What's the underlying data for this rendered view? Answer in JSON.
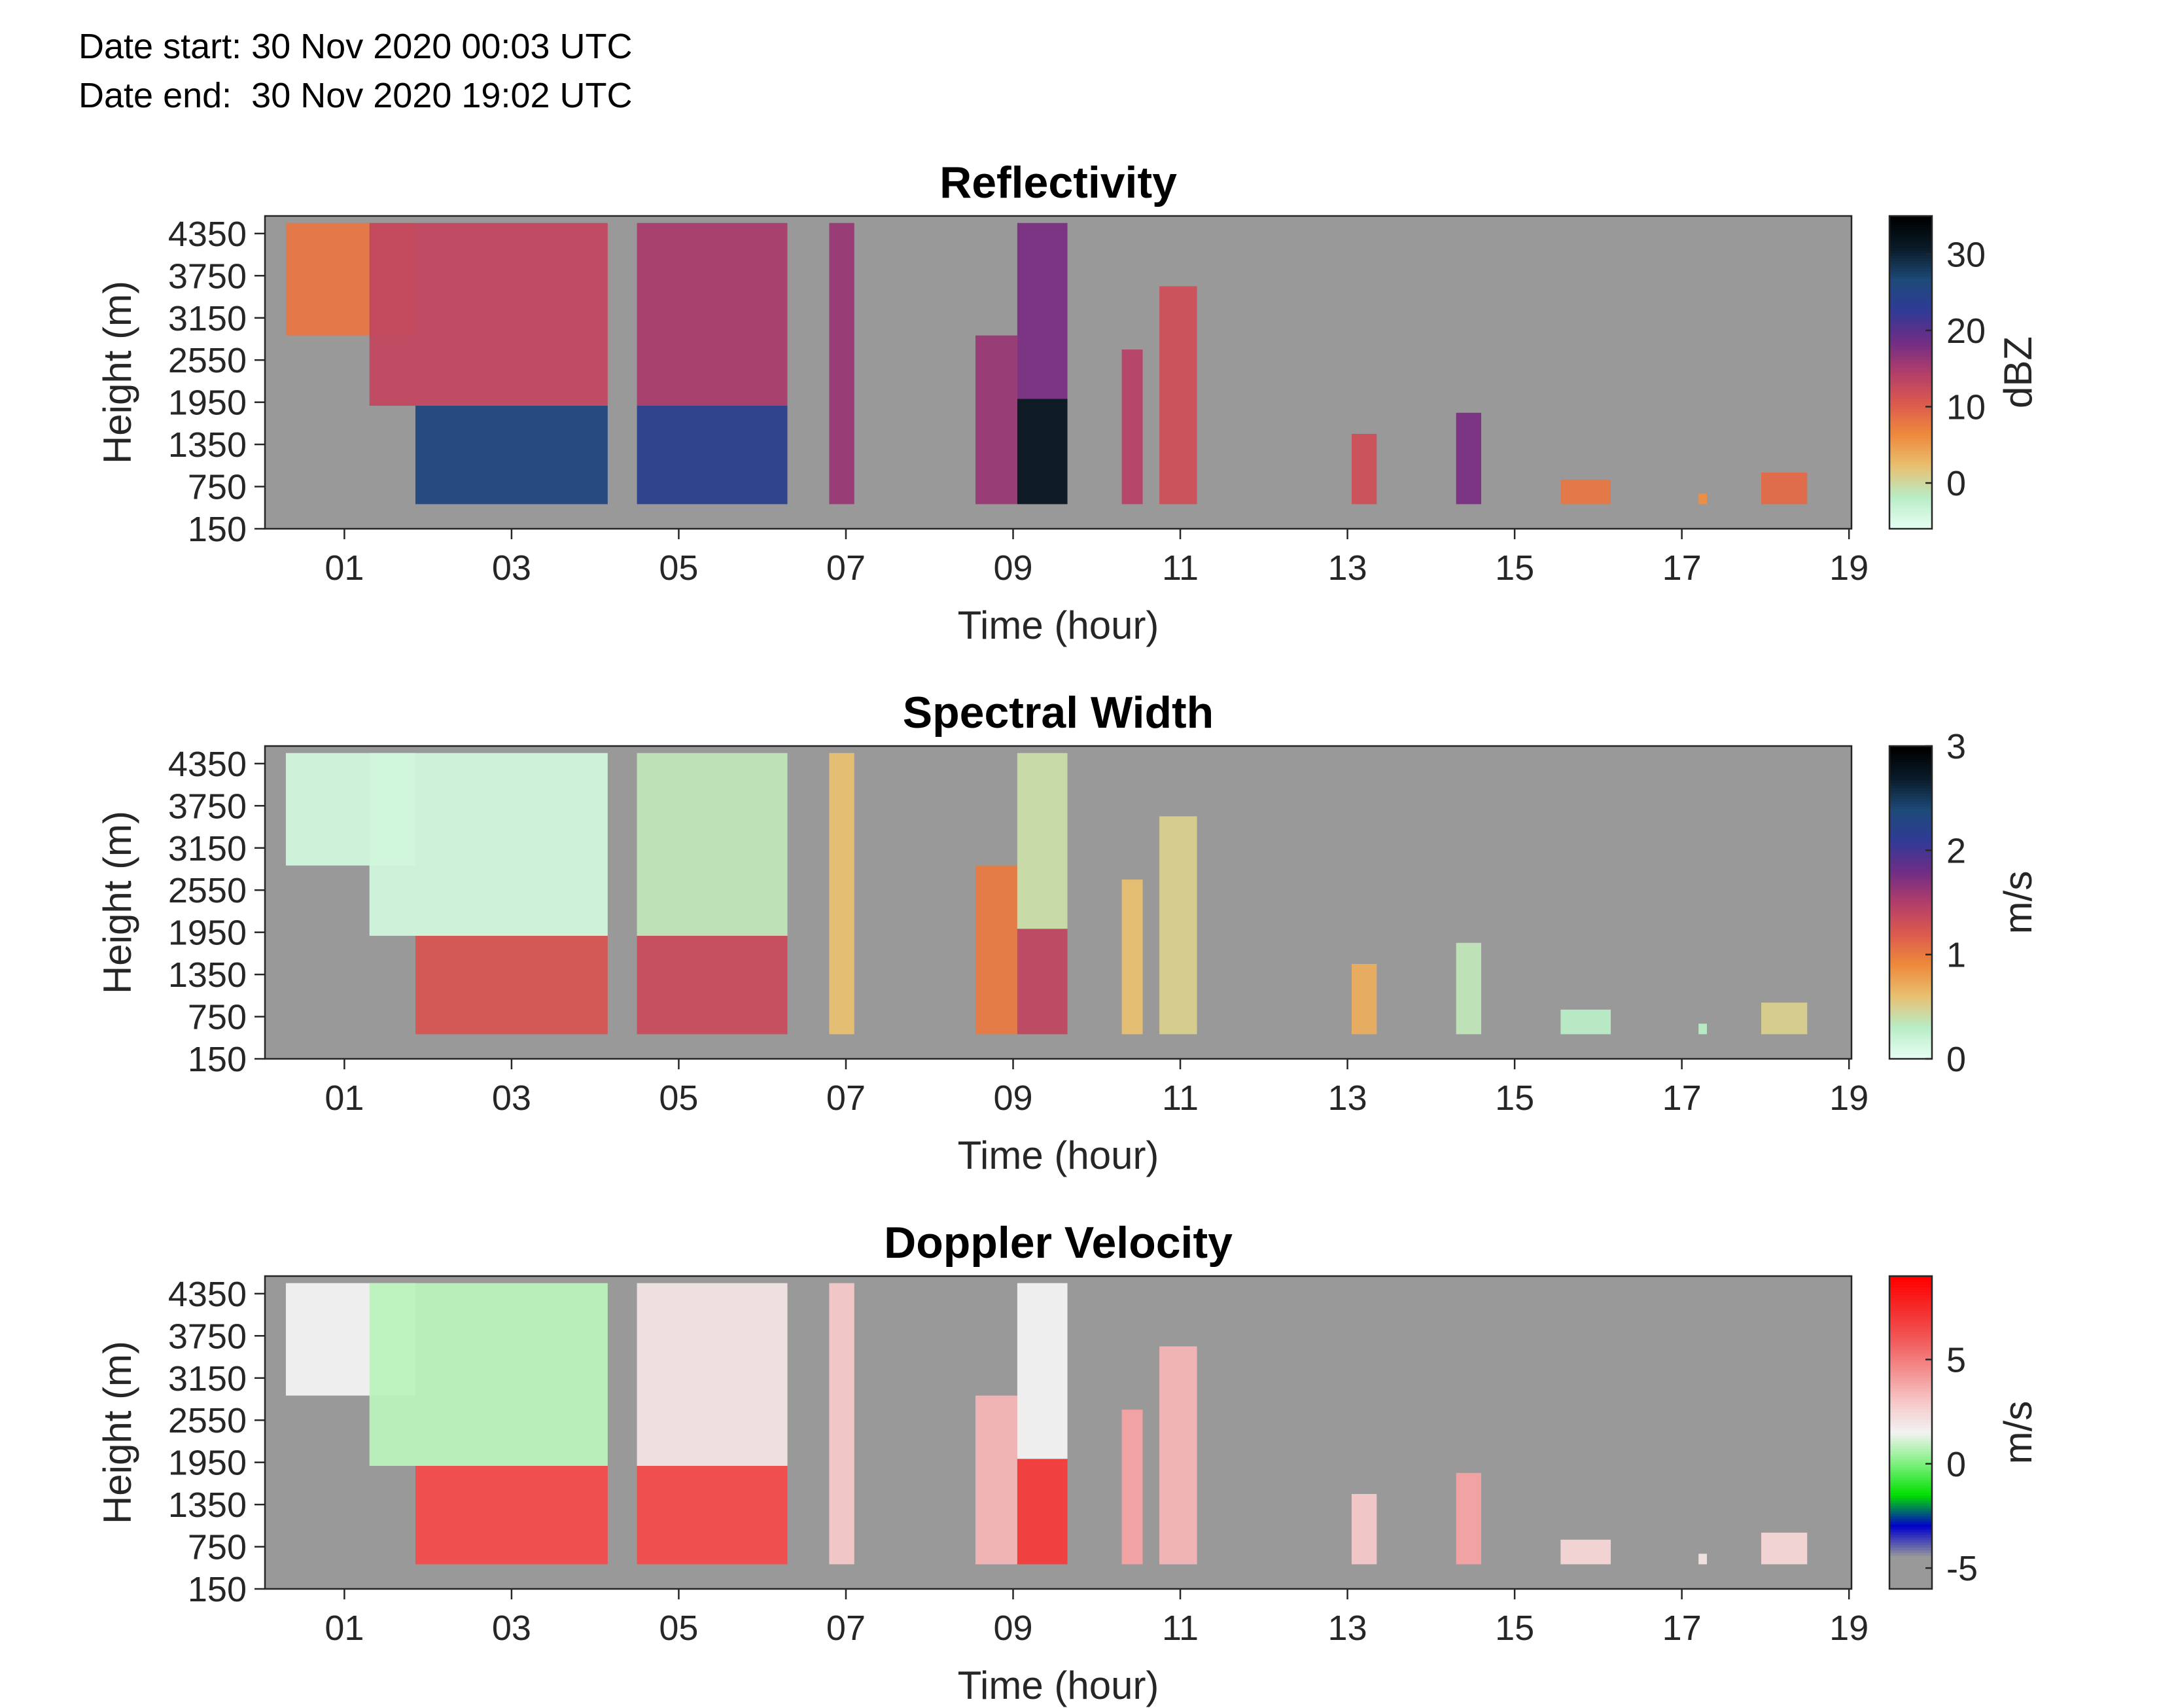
{
  "header": {
    "date_start": "Date start: 30 Nov 2020 00:03 UTC",
    "date_end": "Date end:  30 Nov 2020 19:02 UTC"
  },
  "colors": {
    "background": "#999999",
    "axis": "#262626",
    "missing_data": "#999999"
  },
  "chart_data": [
    {
      "type": "heatmap",
      "title": "Reflectivity",
      "xlabel": "Time (hour)",
      "ylabel": "Height (m)",
      "xlim": [
        0.05,
        19.03
      ],
      "ylim": [
        150,
        4600
      ],
      "x_ticks": [
        "01",
        "03",
        "05",
        "07",
        "09",
        "11",
        "13",
        "15",
        "17",
        "19"
      ],
      "x_tick_values": [
        1,
        3,
        5,
        7,
        9,
        11,
        13,
        15,
        17,
        19
      ],
      "y_ticks": [
        "150",
        "750",
        "1350",
        "1950",
        "2550",
        "3150",
        "3750",
        "4350"
      ],
      "y_tick_values": [
        150,
        750,
        1350,
        1950,
        2550,
        3150,
        3750,
        4350
      ],
      "colorbar": {
        "label": "dBZ",
        "range": [
          -6,
          35
        ],
        "ticks": [
          "0",
          "10",
          "20",
          "30"
        ],
        "tick_values": [
          0,
          10,
          20,
          30
        ],
        "colors": [
          "#e6fff2",
          "#b9ecc6",
          "#e8c070",
          "#ee8a3c",
          "#dd5a4e",
          "#b23e6a",
          "#6f2d86",
          "#303a96",
          "#1d4a78",
          "#0a1c2a",
          "#000000"
        ]
      },
      "echoes": [
        {
          "t0": 0.3,
          "t1": 1.85,
          "h0": 2900,
          "h1": 4500,
          "level": 8
        },
        {
          "t0": 1.85,
          "t1": 4.15,
          "h0": 500,
          "h1": 1900,
          "level": 26
        },
        {
          "t0": 1.3,
          "t1": 4.15,
          "h0": 1900,
          "h1": 4500,
          "level": 13
        },
        {
          "t0": 4.5,
          "t1": 6.3,
          "h0": 500,
          "h1": 1900,
          "level": 24
        },
        {
          "t0": 4.5,
          "t1": 6.3,
          "h0": 1900,
          "h1": 4500,
          "level": 15
        },
        {
          "t0": 6.8,
          "t1": 7.1,
          "h0": 500,
          "h1": 4500,
          "level": 16
        },
        {
          "t0": 8.55,
          "t1": 9.05,
          "h0": 500,
          "h1": 2900,
          "level": 16
        },
        {
          "t0": 9.05,
          "t1": 9.65,
          "h0": 500,
          "h1": 2000,
          "level": 32
        },
        {
          "t0": 9.05,
          "t1": 9.65,
          "h0": 2000,
          "h1": 4500,
          "level": 18
        },
        {
          "t0": 10.3,
          "t1": 10.55,
          "h0": 500,
          "h1": 2700,
          "level": 14
        },
        {
          "t0": 10.75,
          "t1": 11.2,
          "h0": 500,
          "h1": 3600,
          "level": 12
        },
        {
          "t0": 13.05,
          "t1": 13.35,
          "h0": 500,
          "h1": 1500,
          "level": 12
        },
        {
          "t0": 14.3,
          "t1": 14.6,
          "h0": 500,
          "h1": 1800,
          "level": 18
        },
        {
          "t0": 15.55,
          "t1": 16.15,
          "h0": 500,
          "h1": 850,
          "level": 8
        },
        {
          "t0": 17.2,
          "t1": 17.3,
          "h0": 500,
          "h1": 650,
          "level": 6
        },
        {
          "t0": 17.95,
          "t1": 18.5,
          "h0": 500,
          "h1": 950,
          "level": 9
        }
      ]
    },
    {
      "type": "heatmap",
      "title": "Spectral Width",
      "xlabel": "Time (hour)",
      "ylabel": "Height (m)",
      "xlim": [
        0.05,
        19.03
      ],
      "ylim": [
        150,
        4600
      ],
      "x_ticks": [
        "01",
        "03",
        "05",
        "07",
        "09",
        "11",
        "13",
        "15",
        "17",
        "19"
      ],
      "x_tick_values": [
        1,
        3,
        5,
        7,
        9,
        11,
        13,
        15,
        17,
        19
      ],
      "y_ticks": [
        "150",
        "750",
        "1350",
        "1950",
        "2550",
        "3150",
        "3750",
        "4350"
      ],
      "y_tick_values": [
        150,
        750,
        1350,
        1950,
        2550,
        3150,
        3750,
        4350
      ],
      "colorbar": {
        "label": "m/s",
        "range": [
          0,
          3
        ],
        "ticks": [
          "0",
          "1",
          "2",
          "3"
        ],
        "tick_values": [
          0,
          1,
          2,
          3
        ],
        "colors": [
          "#e6fff2",
          "#b9ecc6",
          "#e8c070",
          "#ee8a3c",
          "#dd5a4e",
          "#b23e6a",
          "#6f2d86",
          "#303a96",
          "#1d4a78",
          "#0a1c2a",
          "#000000"
        ]
      },
      "echoes": [
        {
          "t0": 0.3,
          "t1": 1.85,
          "h0": 2900,
          "h1": 4500,
          "level": 0.15
        },
        {
          "t0": 1.85,
          "t1": 4.15,
          "h0": 500,
          "h1": 1900,
          "level": 1.25
        },
        {
          "t0": 1.3,
          "t1": 4.15,
          "h0": 1900,
          "h1": 4500,
          "level": 0.15
        },
        {
          "t0": 4.5,
          "t1": 6.3,
          "h0": 500,
          "h1": 1900,
          "level": 1.35
        },
        {
          "t0": 4.5,
          "t1": 6.3,
          "h0": 1900,
          "h1": 4500,
          "level": 0.35
        },
        {
          "t0": 6.8,
          "t1": 7.1,
          "h0": 500,
          "h1": 4500,
          "level": 0.6
        },
        {
          "t0": 8.55,
          "t1": 9.05,
          "h0": 500,
          "h1": 2900,
          "level": 1.0
        },
        {
          "t0": 9.05,
          "t1": 9.65,
          "h0": 500,
          "h1": 2000,
          "level": 1.4
        },
        {
          "t0": 9.05,
          "t1": 9.65,
          "h0": 2000,
          "h1": 4500,
          "level": 0.4
        },
        {
          "t0": 10.3,
          "t1": 10.55,
          "h0": 500,
          "h1": 2700,
          "level": 0.6
        },
        {
          "t0": 10.75,
          "t1": 11.2,
          "h0": 500,
          "h1": 3600,
          "level": 0.5
        },
        {
          "t0": 13.05,
          "t1": 13.35,
          "h0": 500,
          "h1": 1500,
          "level": 0.7
        },
        {
          "t0": 14.3,
          "t1": 14.6,
          "h0": 500,
          "h1": 1800,
          "level": 0.35
        },
        {
          "t0": 15.55,
          "t1": 16.15,
          "h0": 500,
          "h1": 850,
          "level": 0.3
        },
        {
          "t0": 17.2,
          "t1": 17.3,
          "h0": 500,
          "h1": 650,
          "level": 0.3
        },
        {
          "t0": 17.95,
          "t1": 18.5,
          "h0": 500,
          "h1": 950,
          "level": 0.5
        }
      ]
    },
    {
      "type": "heatmap",
      "title": "Doppler Velocity",
      "xlabel": "Time (hour)",
      "ylabel": "Height (m)",
      "xlim": [
        0.05,
        19.03
      ],
      "ylim": [
        150,
        4600
      ],
      "x_ticks": [
        "01",
        "03",
        "05",
        "07",
        "09",
        "11",
        "13",
        "15",
        "17",
        "19"
      ],
      "x_tick_values": [
        1,
        3,
        5,
        7,
        9,
        11,
        13,
        15,
        17,
        19
      ],
      "y_ticks": [
        "150",
        "750",
        "1350",
        "1950",
        "2550",
        "3150",
        "3750",
        "4350"
      ],
      "y_tick_values": [
        150,
        750,
        1350,
        1950,
        2550,
        3150,
        3750,
        4350
      ],
      "colorbar": {
        "label": "m/s",
        "range": [
          -6,
          9
        ],
        "ticks": [
          "-5",
          "0",
          "5"
        ],
        "tick_values": [
          -5,
          0,
          5
        ],
        "colors": [
          "#999999",
          "#999999",
          "#0000cc",
          "#00e000",
          "#7cf07c",
          "#f2f2f2",
          "#f6c8c8",
          "#f49090",
          "#f25a5a",
          "#f52c2c",
          "#ff0000"
        ]
      },
      "echoes": [
        {
          "t0": 0.3,
          "t1": 1.85,
          "h0": 2900,
          "h1": 4500,
          "level": 1.5
        },
        {
          "t0": 1.85,
          "t1": 4.15,
          "h0": 500,
          "h1": 1900,
          "level": 6.5
        },
        {
          "t0": 1.3,
          "t1": 4.15,
          "h0": 1900,
          "h1": 4500,
          "level": 0.8
        },
        {
          "t0": 4.5,
          "t1": 6.3,
          "h0": 500,
          "h1": 1900,
          "level": 6.5
        },
        {
          "t0": 4.5,
          "t1": 6.3,
          "h0": 1900,
          "h1": 4500,
          "level": 2.0
        },
        {
          "t0": 6.8,
          "t1": 7.1,
          "h0": 500,
          "h1": 4500,
          "level": 3.0
        },
        {
          "t0": 8.55,
          "t1": 9.05,
          "h0": 500,
          "h1": 2900,
          "level": 3.5
        },
        {
          "t0": 9.05,
          "t1": 9.65,
          "h0": 500,
          "h1": 2000,
          "level": 7.0
        },
        {
          "t0": 9.05,
          "t1": 9.65,
          "h0": 2000,
          "h1": 4500,
          "level": 1.5
        },
        {
          "t0": 10.3,
          "t1": 10.55,
          "h0": 500,
          "h1": 2700,
          "level": 4.0
        },
        {
          "t0": 10.75,
          "t1": 11.2,
          "h0": 500,
          "h1": 3600,
          "level": 3.5
        },
        {
          "t0": 13.05,
          "t1": 13.35,
          "h0": 500,
          "h1": 1500,
          "level": 3.0
        },
        {
          "t0": 14.3,
          "t1": 14.6,
          "h0": 500,
          "h1": 1800,
          "level": 4.0
        },
        {
          "t0": 15.55,
          "t1": 16.15,
          "h0": 500,
          "h1": 850,
          "level": 2.5
        },
        {
          "t0": 17.2,
          "t1": 17.3,
          "h0": 500,
          "h1": 650,
          "level": 2.0
        },
        {
          "t0": 17.95,
          "t1": 18.5,
          "h0": 500,
          "h1": 950,
          "level": 2.5
        }
      ]
    }
  ]
}
